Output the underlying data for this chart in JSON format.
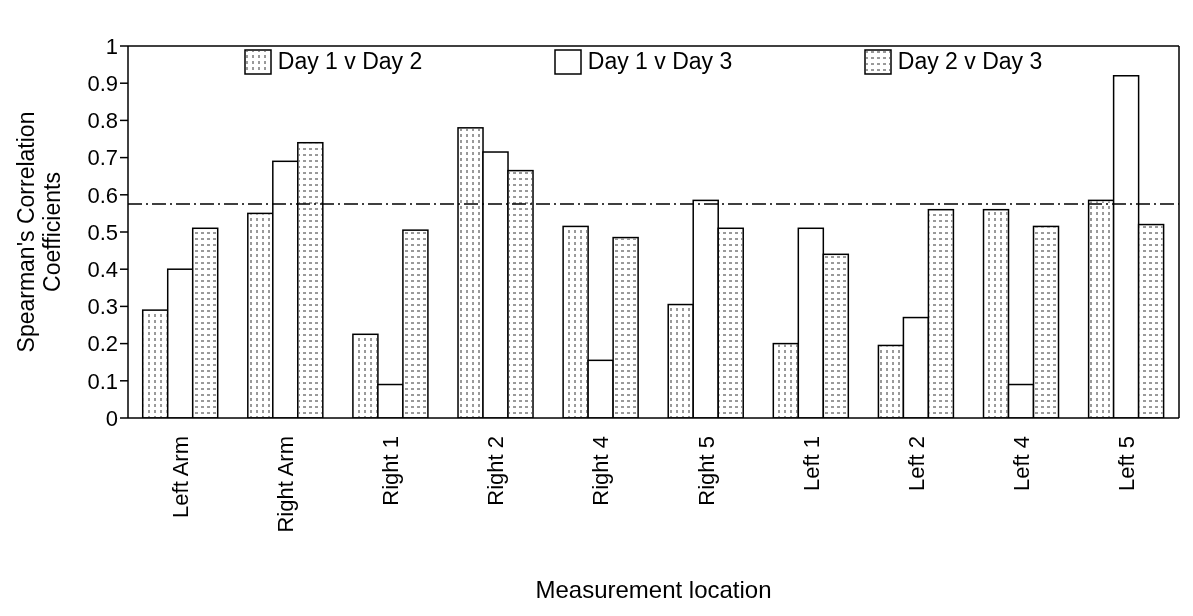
{
  "chart_data": {
    "type": "bar",
    "ylabel": "Spearman's Correlation Coefficients",
    "xlabel": "Measurement location",
    "categories": [
      "Left Arm",
      "Right Arm",
      "Right 1",
      "Right 2",
      "Right 4",
      "Right 5",
      "Left 1",
      "Left 2",
      "Left 4",
      "Left 5"
    ],
    "series": [
      {
        "name": "Day 1 v Day 2",
        "color": "#ffffff",
        "values": [
          0.29,
          0.55,
          0.225,
          0.78,
          0.515,
          0.305,
          0.2,
          0.195,
          0.56,
          0.585
        ]
      },
      {
        "name": "Day 1 v Day 3",
        "color": "#ffffff",
        "values": [
          0.4,
          0.69,
          0.09,
          0.715,
          0.155,
          0.585,
          0.51,
          0.27,
          0.09,
          0.92
        ]
      },
      {
        "name": "Day 2 v Day 3",
        "color": "#ffffff",
        "values": [
          0.51,
          0.74,
          0.505,
          0.665,
          0.485,
          0.51,
          0.44,
          0.56,
          0.515,
          0.52
        ]
      }
    ],
    "ylim": [
      0,
      1
    ],
    "yticks": [
      0,
      0.1,
      0.2,
      0.3,
      0.4,
      0.5,
      0.6,
      0.7,
      0.8,
      0.9,
      1
    ],
    "ref_lines": [
      {
        "axis": "y",
        "value": 0.575,
        "line_style": "dashdot",
        "color": "#000000"
      }
    ],
    "grid": false,
    "legend": "top"
  }
}
